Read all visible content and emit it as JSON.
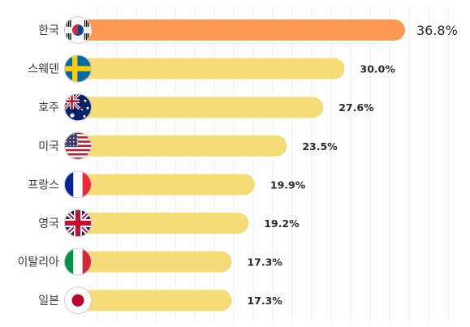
{
  "chart_data": {
    "type": "bar",
    "orientation": "horizontal",
    "categories": [
      "한국",
      "스웨덴",
      "호주",
      "미국",
      "프랑스",
      "영국",
      "이탈리아",
      "일본"
    ],
    "values": [
      36.8,
      30.0,
      27.6,
      23.5,
      19.9,
      19.2,
      17.3,
      17.3
    ],
    "value_labels": [
      "36.8%",
      "30.0%",
      "27.6%",
      "23.5%",
      "19.9%",
      "19.2%",
      "17.3%",
      "17.3%"
    ],
    "flags": [
      "kr-flag-icon",
      "se-flag-icon",
      "au-flag-icon",
      "us-flag-icon",
      "fr-flag-icon",
      "gb-flag-icon",
      "it-flag-icon",
      "jp-flag-icon"
    ],
    "highlight_index": 0,
    "xlim": [
      0,
      40
    ],
    "grid": true,
    "colors": {
      "bar": "#f5dc77",
      "highlight_bar": "#fc9a52",
      "grid": "#ececec"
    }
  }
}
